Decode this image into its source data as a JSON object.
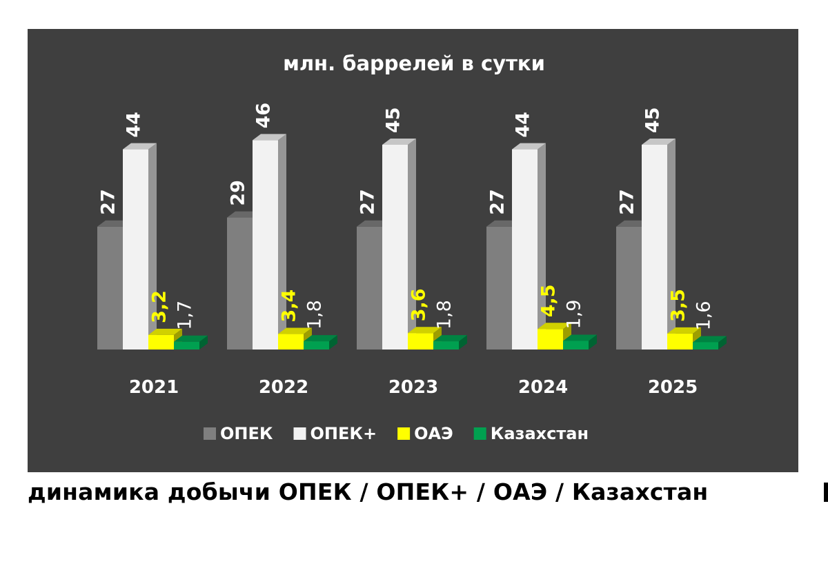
{
  "caption": "динамика добычи ОПЕК / ОПЕК+ / ОАЭ / Казахстан",
  "chart_data": {
    "type": "bar",
    "title": "млн. баррелей в сутки",
    "xlabel": "",
    "ylabel": "",
    "categories": [
      "2021",
      "2022",
      "2023",
      "2024",
      "2025"
    ],
    "series": [
      {
        "name": "ОПЕК",
        "values": [
          27,
          29,
          27,
          27,
          27
        ],
        "labels": [
          "27",
          "29",
          "27",
          "27",
          "27"
        ],
        "color": "#7f7f7f",
        "label_color": "#ffffff"
      },
      {
        "name": "ОПЕК+",
        "values": [
          44,
          46,
          45,
          44,
          45
        ],
        "labels": [
          "44",
          "46",
          "45",
          "44",
          "45"
        ],
        "color": "#f2f2f2",
        "label_color": "#ffffff"
      },
      {
        "name": "ОАЭ",
        "values": [
          3.2,
          3.4,
          3.6,
          4.5,
          3.5
        ],
        "labels": [
          "3,2",
          "3,4",
          "3,6",
          "4,5",
          "3,5"
        ],
        "color": "#ffff00",
        "label_color": "#ffff00"
      },
      {
        "name": "Казахстан",
        "values": [
          1.7,
          1.8,
          1.8,
          1.9,
          1.6
        ],
        "labels": [
          "1,7",
          "1,8",
          "1,8",
          "1,9",
          "1,6"
        ],
        "color": "#00a050",
        "label_color": "#ffffff"
      }
    ],
    "style": "3d-clustered-columns",
    "grid": false,
    "legend_position": "bottom",
    "background": "#3f3f3f"
  }
}
